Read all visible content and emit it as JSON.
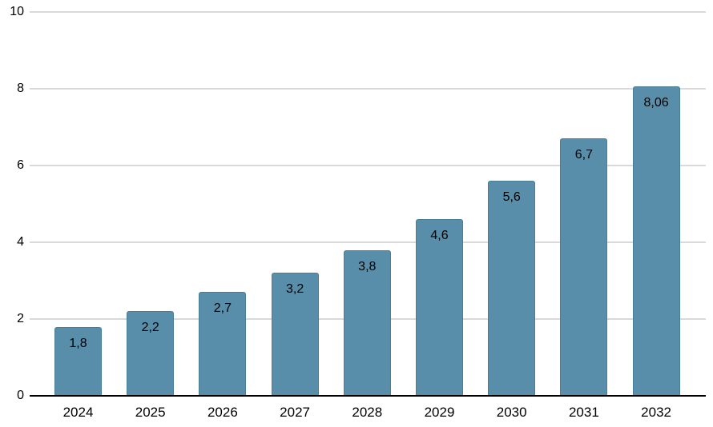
{
  "chart_data": {
    "type": "bar",
    "title": "",
    "xlabel": "",
    "ylabel": "",
    "categories": [
      "2024",
      "2025",
      "2026",
      "2027",
      "2028",
      "2029",
      "2030",
      "2031",
      "2032"
    ],
    "values": [
      1.8,
      2.2,
      2.7,
      3.2,
      3.8,
      4.6,
      5.6,
      6.7,
      8.06
    ],
    "value_labels": [
      "1,8",
      "2,2",
      "2,7",
      "3,2",
      "3,8",
      "4,6",
      "5,6",
      "6,7",
      "8,06"
    ],
    "ylim": [
      0,
      10
    ],
    "yticks": [
      0,
      2,
      4,
      6,
      8,
      10
    ],
    "ytick_labels": [
      "0",
      "2",
      "4",
      "6",
      "8",
      "10"
    ],
    "grid": true,
    "legend": "none",
    "colors": {
      "bar_fill": "#588EA9",
      "bar_border": "#4A7D97",
      "gridline": "#D9D9D9",
      "axis_line": "#000000",
      "text": "#000000"
    }
  }
}
